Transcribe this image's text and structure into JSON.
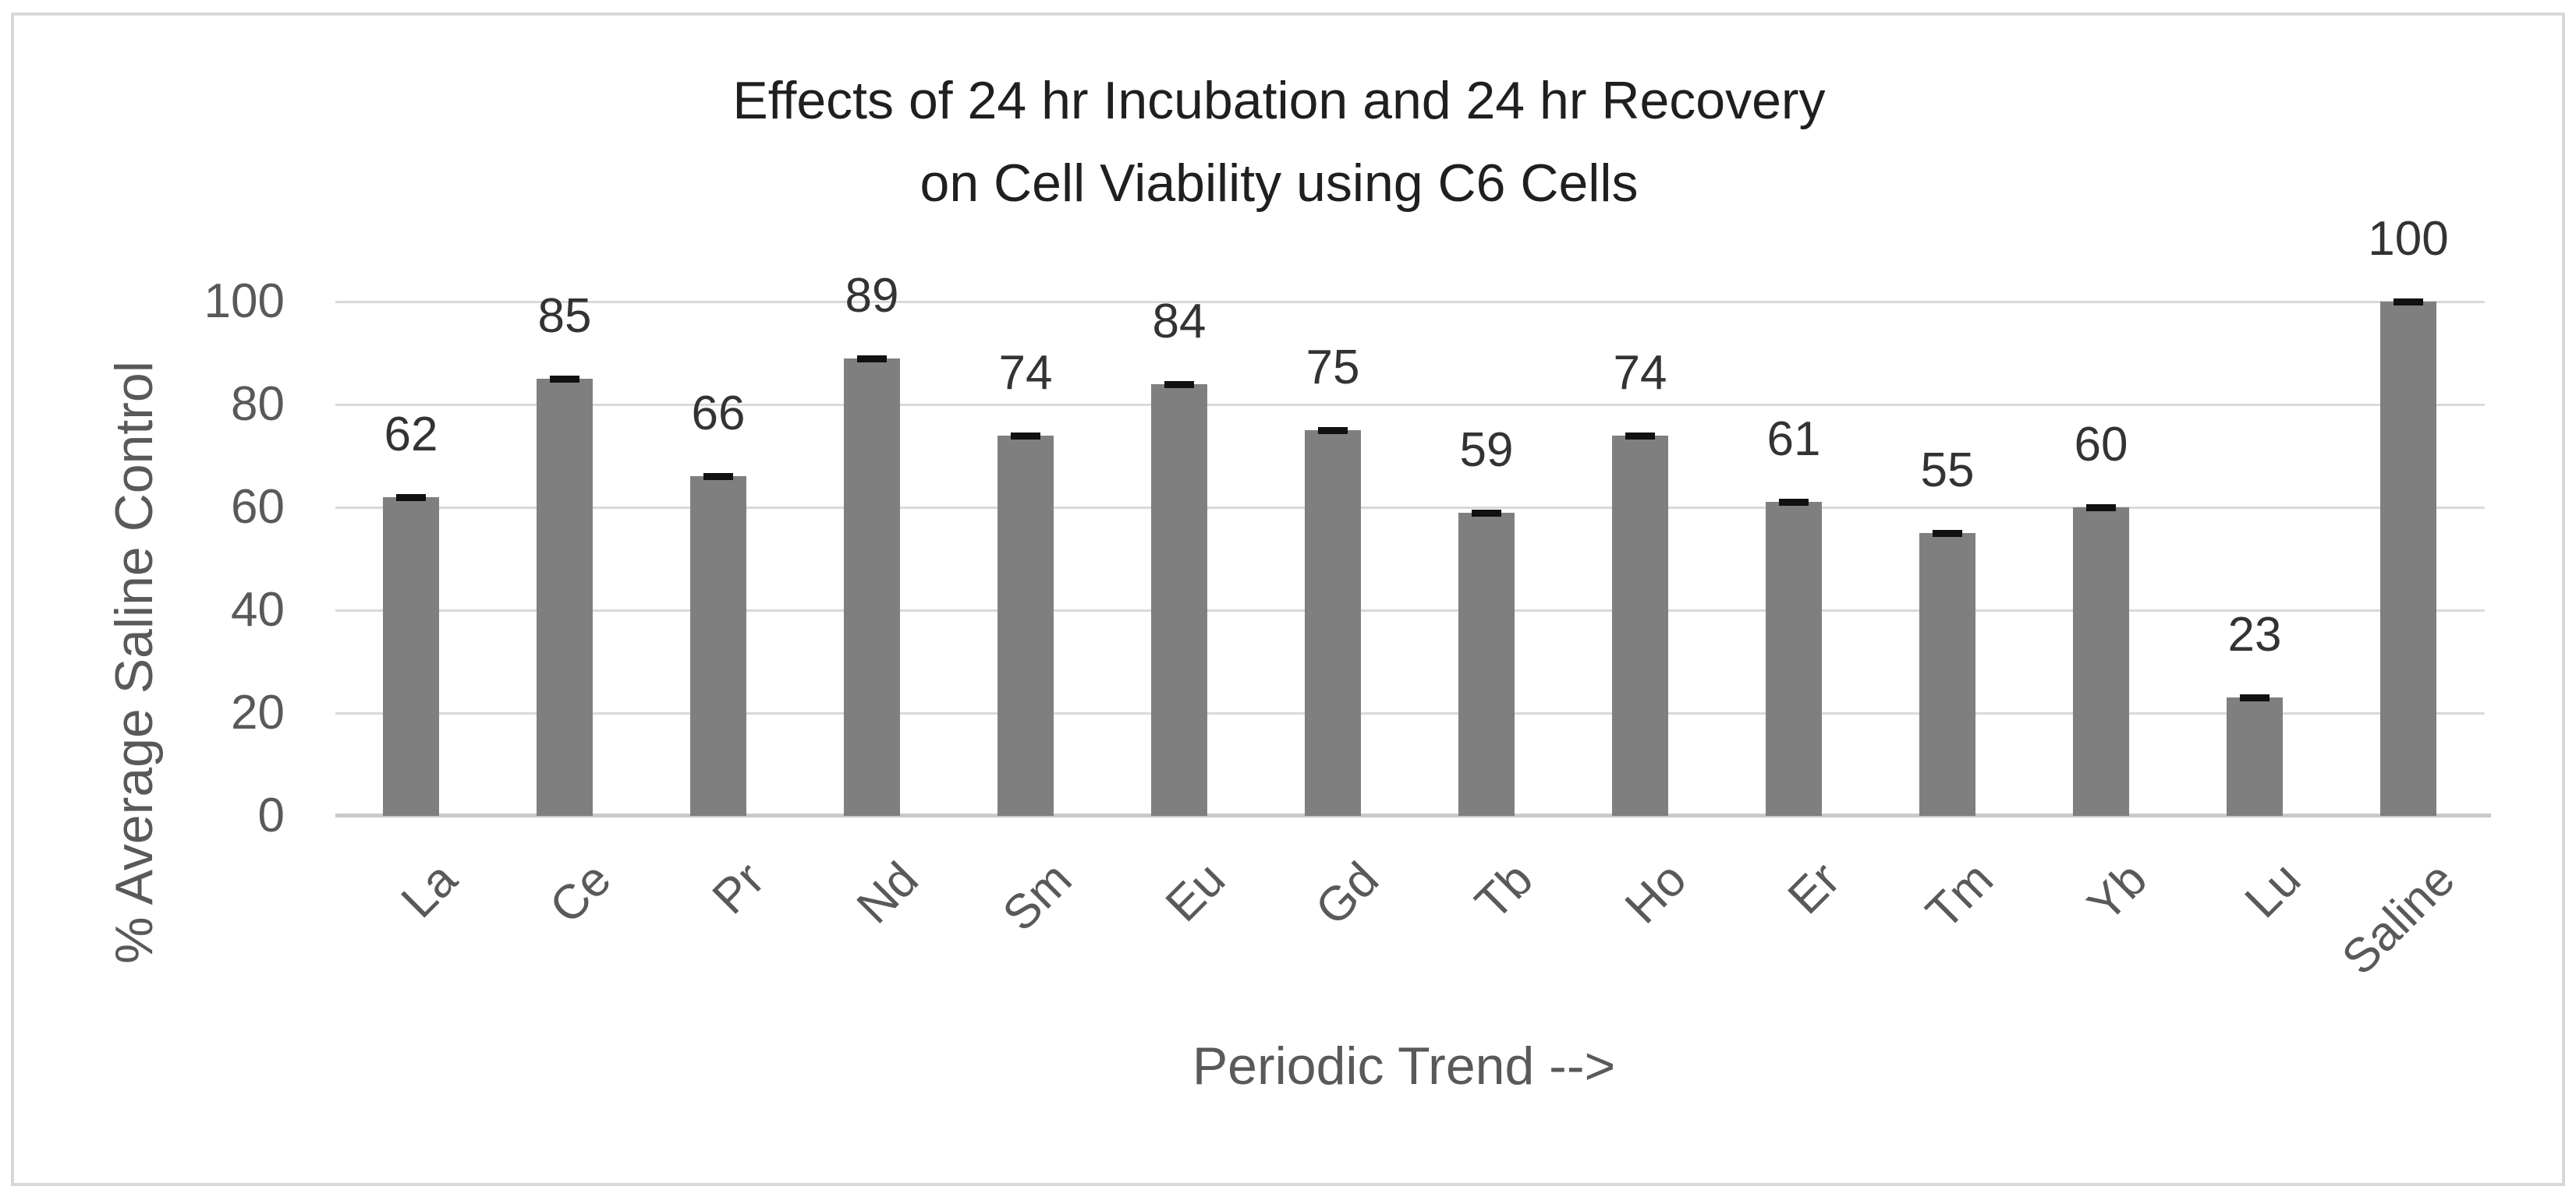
{
  "chart_data": {
    "type": "bar",
    "title_line1": "Effects of 24 hr Incubation and 24 hr Recovery",
    "title_line2": "on Cell Viability using C6 Cells",
    "categories": [
      "La",
      "Ce",
      "Pr",
      "Nd",
      "Sm",
      "Eu",
      "Gd",
      "Tb",
      "Ho",
      "Er",
      "Tm",
      "Yb",
      "Lu",
      "Saline"
    ],
    "values": [
      62,
      85,
      66,
      89,
      74,
      84,
      75,
      59,
      74,
      61,
      55,
      60,
      23,
      100
    ],
    "error_bars": "small black cap centered on each bar top",
    "xlabel": "Periodic Trend -->",
    "ylabel": "% Average Saline Control",
    "yticks": [
      0,
      20,
      40,
      60,
      80,
      100
    ],
    "ylim": [
      0,
      100
    ],
    "grid": "horizontal",
    "legend": "none",
    "colors": {
      "bar": "#7F7F7F",
      "error_cap": "#111111",
      "gridline": "#D9D9D9",
      "axis_line": "#C9C9C9",
      "tick_label": "#595959",
      "data_label": "#333333",
      "title": "#1F1F1F",
      "frame_border": "#D8D8D8"
    }
  }
}
